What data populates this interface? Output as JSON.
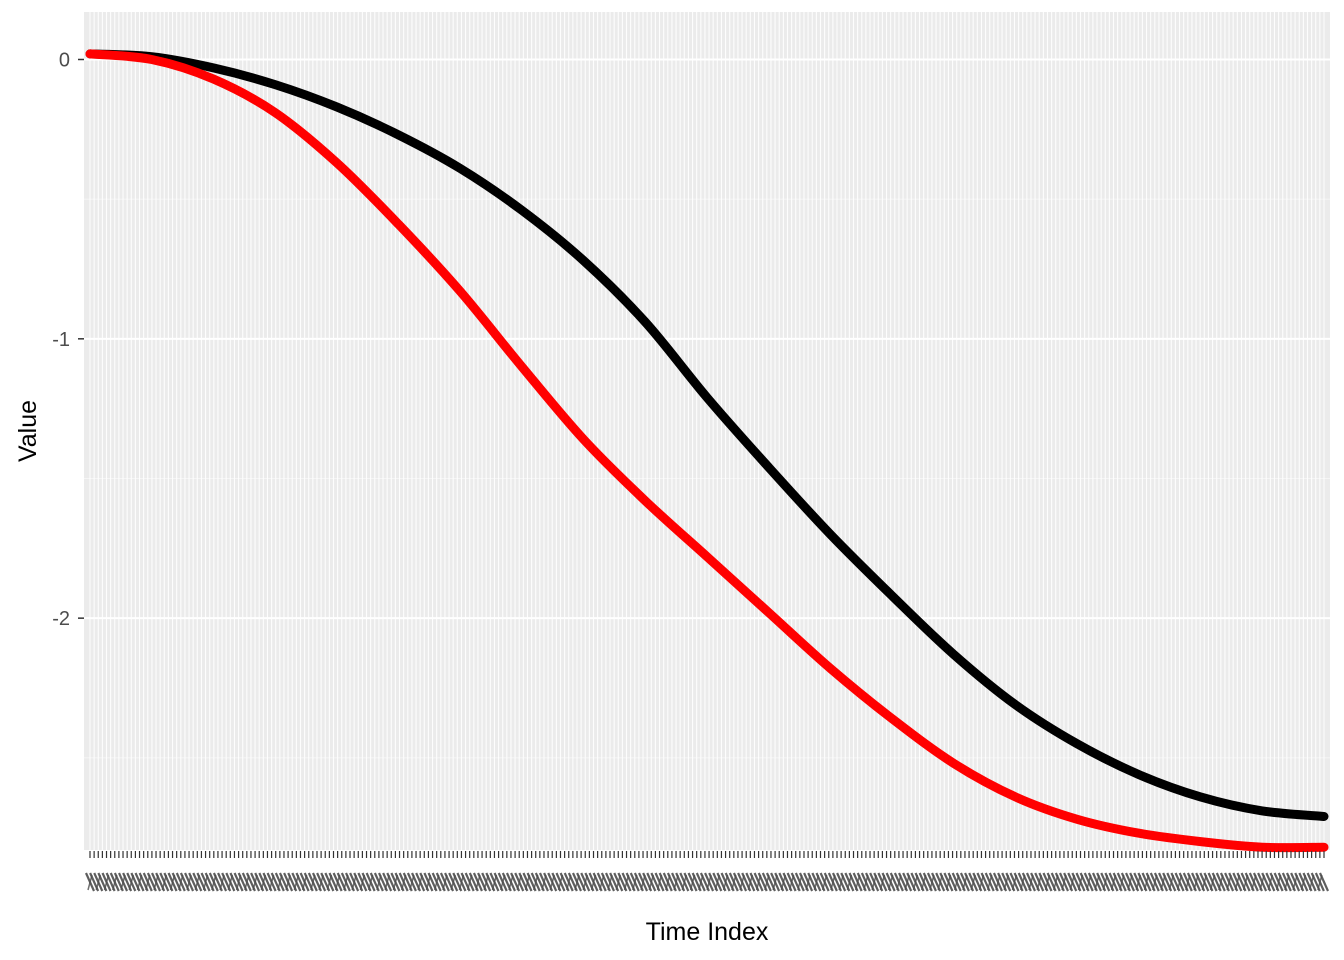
{
  "chart_data": {
    "type": "line",
    "title": "",
    "xlabel": "Time Index",
    "ylabel": "Value",
    "x_tick_count": 300,
    "x_tick_labels_note": "dense overlapping labels, illegible",
    "ylim": [
      -2.83,
      0.17
    ],
    "yticks": [
      0,
      -1,
      -2
    ],
    "ytick_labels": [
      "0",
      "-1",
      "-2"
    ],
    "grid": true,
    "legend": "none",
    "series": [
      {
        "name": "series-black",
        "color": "#000000",
        "x": [
          0,
          0.05,
          0.1,
          0.15,
          0.2,
          0.25,
          0.3,
          0.35,
          0.4,
          0.45,
          0.5,
          0.55,
          0.6,
          0.65,
          0.7,
          0.75,
          0.8,
          0.85,
          0.9,
          0.95,
          1.0
        ],
        "values": [
          0.02,
          0.01,
          -0.03,
          -0.09,
          -0.17,
          -0.27,
          -0.39,
          -0.54,
          -0.72,
          -0.94,
          -1.21,
          -1.46,
          -1.7,
          -1.92,
          -2.13,
          -2.31,
          -2.45,
          -2.56,
          -2.64,
          -2.69,
          -2.71
        ]
      },
      {
        "name": "series-red",
        "color": "#ff0000",
        "x": [
          0,
          0.05,
          0.1,
          0.15,
          0.2,
          0.25,
          0.3,
          0.35,
          0.4,
          0.45,
          0.5,
          0.55,
          0.6,
          0.65,
          0.7,
          0.75,
          0.8,
          0.85,
          0.9,
          0.95,
          1.0
        ],
        "values": [
          0.02,
          0.0,
          -0.07,
          -0.19,
          -0.37,
          -0.59,
          -0.83,
          -1.1,
          -1.36,
          -1.58,
          -1.78,
          -1.98,
          -2.18,
          -2.36,
          -2.52,
          -2.64,
          -2.72,
          -2.77,
          -2.8,
          -2.82,
          -2.82
        ]
      }
    ]
  }
}
